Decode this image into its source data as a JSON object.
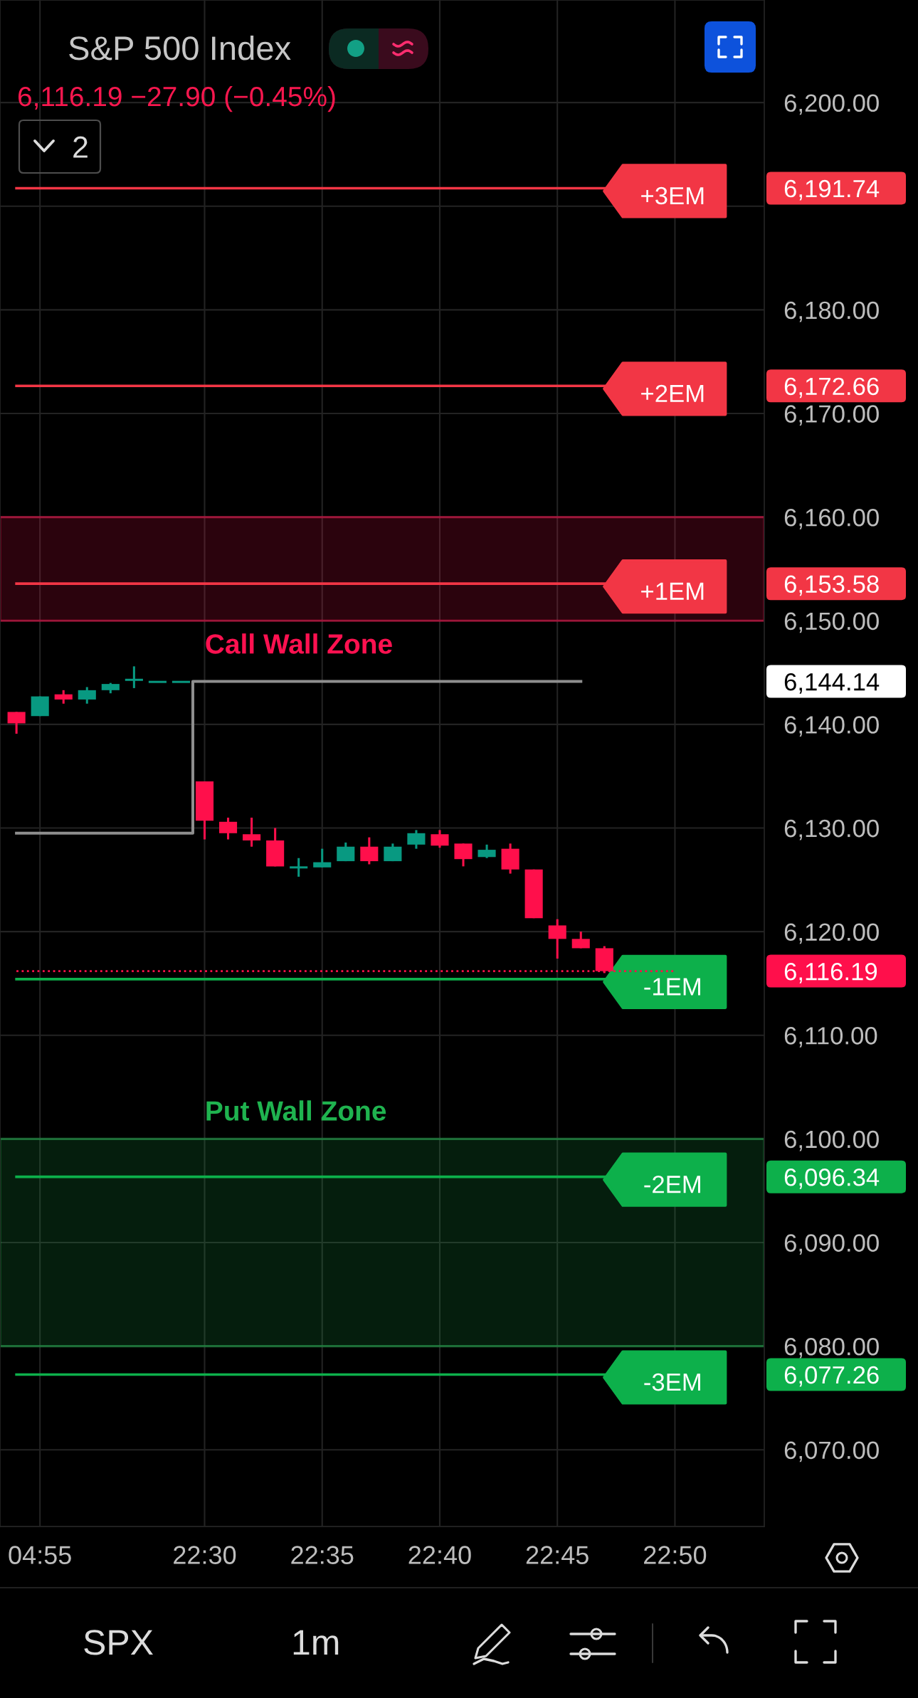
{
  "chart_data": {
    "type": "candlestick",
    "title": "S&P 500 Index",
    "subtitle": "6,116.19 −27.90 (−0.45%)",
    "categories": [
      null,
      "04:55",
      null,
      null,
      null,
      null,
      null,
      null,
      "22:30",
      null,
      null,
      null,
      null,
      "22:35",
      null,
      null,
      null,
      null,
      "22:40",
      null,
      null,
      null,
      null,
      "22:45",
      null,
      null,
      null,
      null,
      "22:50"
    ],
    "ohlc": [
      [
        6141.2,
        6141.2,
        6139.1,
        6140.1
      ],
      [
        6140.8,
        6142.7,
        6140.8,
        6142.7
      ],
      [
        6142.9,
        6143.3,
        6142.0,
        6142.4
      ],
      [
        6142.4,
        6143.6,
        6142.0,
        6143.3
      ],
      [
        6143.3,
        6144.0,
        6143.0,
        6143.9
      ],
      [
        6144.3,
        6145.6,
        6143.5,
        6144.3
      ],
      [
        6144.1,
        6144.1,
        6144.1,
        6144.1
      ],
      [
        6144.1,
        6144.1,
        6144.1,
        6144.1
      ],
      [
        6134.5,
        6134.5,
        6128.9,
        6130.7
      ],
      [
        6130.6,
        6131.0,
        6128.9,
        6129.5
      ],
      [
        6129.4,
        6131.0,
        6128.2,
        6128.8
      ],
      [
        6128.8,
        6130.0,
        6126.3,
        6126.3
      ],
      [
        6126.2,
        6127.1,
        6125.3,
        6126.2
      ],
      [
        6126.2,
        6128.0,
        6126.2,
        6126.7
      ],
      [
        6126.8,
        6128.6,
        6126.8,
        6128.2
      ],
      [
        6128.2,
        6129.1,
        6126.5,
        6126.8
      ],
      [
        6126.8,
        6128.5,
        6126.8,
        6128.2
      ],
      [
        6128.4,
        6129.8,
        6128.0,
        6129.5
      ],
      [
        6129.4,
        6129.8,
        6128.1,
        6128.3
      ],
      [
        6128.5,
        6128.5,
        6126.3,
        6127.0
      ],
      [
        6127.2,
        6128.4,
        6127.1,
        6127.9
      ],
      [
        6128.0,
        6128.5,
        6125.6,
        6126.0
      ],
      [
        6126.0,
        6126.0,
        6121.3,
        6121.3
      ],
      [
        6120.6,
        6121.2,
        6117.4,
        6119.3
      ],
      [
        6119.3,
        6120.0,
        6118.4,
        6118.4
      ],
      [
        6118.4,
        6118.6,
        6116.0,
        6116.19
      ],
      null,
      null,
      null
    ],
    "colors": [
      "#ff0f4b",
      "#089981",
      "#ff0f4b",
      "#089981",
      "#089981",
      "#089981",
      "#089981",
      "#089981",
      "#ff0f4b",
      "#ff0f4b",
      "#ff0f4b",
      "#ff0f4b",
      "#089981",
      "#089981",
      "#089981",
      "#ff0f4b",
      "#089981",
      "#089981",
      "#ff0f4b",
      "#ff0f4b",
      "#089981",
      "#ff0f4b",
      "#ff0f4b",
      "#ff0f4b",
      "#ff0f4b",
      "#ff0f4b",
      null,
      null,
      null
    ],
    "series": [
      {
        "type": "step",
        "color": "#8e8e8e",
        "values": [
          6129.5,
          6129.5,
          6129.5,
          6129.5,
          6129.5,
          6129.5,
          6129.5,
          6129.5,
          6144.14,
          6144.14,
          6144.14,
          6144.14,
          6144.14,
          6144.14,
          6144.14,
          6144.14,
          6144.14,
          6144.14,
          6144.14,
          6144.14,
          6144.14,
          6144.14,
          6144.14,
          6144.14,
          6144.14,
          null,
          null,
          null,
          null
        ]
      },
      {
        "type": "line",
        "name": "+3EM",
        "color": "#f23645",
        "values": [
          6191.74,
          6191.74,
          6191.74,
          6191.74,
          6191.74,
          6191.74,
          6191.74,
          6191.74,
          6191.74,
          6191.74,
          6191.74,
          6191.74,
          6191.74,
          6191.74,
          6191.74,
          6191.74,
          6191.74,
          6191.74,
          6191.74,
          6191.74,
          6191.74,
          6191.74,
          6191.74,
          6191.74,
          6191.74,
          6191.74,
          null,
          null,
          null
        ]
      },
      {
        "type": "line",
        "name": "+2EM",
        "color": "#f23645",
        "values": [
          6172.66,
          6172.66,
          6172.66,
          6172.66,
          6172.66,
          6172.66,
          6172.66,
          6172.66,
          6172.66,
          6172.66,
          6172.66,
          6172.66,
          6172.66,
          6172.66,
          6172.66,
          6172.66,
          6172.66,
          6172.66,
          6172.66,
          6172.66,
          6172.66,
          6172.66,
          6172.66,
          6172.66,
          6172.66,
          6172.66,
          null,
          null,
          null
        ]
      },
      {
        "type": "line",
        "name": "+1EM",
        "color": "#f23645",
        "values": [
          6153.58,
          6153.58,
          6153.58,
          6153.58,
          6153.58,
          6153.58,
          6153.58,
          6153.58,
          6153.58,
          6153.58,
          6153.58,
          6153.58,
          6153.58,
          6153.58,
          6153.58,
          6153.58,
          6153.58,
          6153.58,
          6153.58,
          6153.58,
          6153.58,
          6153.58,
          6153.58,
          6153.58,
          6153.58,
          6153.58,
          null,
          null,
          null
        ]
      },
      {
        "type": "line",
        "line_style": "dotted",
        "color": "#ff0f4b",
        "values": [
          6116.19,
          6116.19,
          6116.19,
          6116.19,
          6116.19,
          6116.19,
          6116.19,
          6116.19,
          6116.19,
          6116.19,
          6116.19,
          6116.19,
          6116.19,
          6116.19,
          6116.19,
          6116.19,
          6116.19,
          6116.19,
          6116.19,
          6116.19,
          6116.19,
          6116.19,
          6116.19,
          6116.19,
          6116.19,
          6116.19,
          6116.19,
          6116.19,
          6116.19
        ]
      },
      {
        "type": "line",
        "name": "-1EM",
        "color": "#0db04b",
        "values": [
          6115.42,
          6115.42,
          6115.42,
          6115.42,
          6115.42,
          6115.42,
          6115.42,
          6115.42,
          6115.42,
          6115.42,
          6115.42,
          6115.42,
          6115.42,
          6115.42,
          6115.42,
          6115.42,
          6115.42,
          6115.42,
          6115.42,
          6115.42,
          6115.42,
          6115.42,
          6115.42,
          6115.42,
          6115.42,
          6115.42,
          null,
          null,
          null
        ]
      },
      {
        "type": "line",
        "name": "-2EM",
        "color": "#0db04b",
        "values": [
          6096.34,
          6096.34,
          6096.34,
          6096.34,
          6096.34,
          6096.34,
          6096.34,
          6096.34,
          6096.34,
          6096.34,
          6096.34,
          6096.34,
          6096.34,
          6096.34,
          6096.34,
          6096.34,
          6096.34,
          6096.34,
          6096.34,
          6096.34,
          6096.34,
          6096.34,
          6096.34,
          6096.34,
          6096.34,
          6096.34,
          null,
          null,
          null
        ]
      },
      {
        "type": "line",
        "name": "-3EM",
        "color": "#0db04b",
        "values": [
          6077.26,
          6077.26,
          6077.26,
          6077.26,
          6077.26,
          6077.26,
          6077.26,
          6077.26,
          6077.26,
          6077.26,
          6077.26,
          6077.26,
          6077.26,
          6077.26,
          6077.26,
          6077.26,
          6077.26,
          6077.26,
          6077.26,
          6077.26,
          6077.26,
          6077.26,
          6077.26,
          6077.26,
          6077.26,
          6077.26,
          null,
          null,
          null
        ]
      }
    ],
    "ylim": [
      6062.6,
      6209.9
    ],
    "yticks": [
      {
        "value": 6070,
        "label": "6,070.00"
      },
      {
        "value": 6080,
        "label": "6,080.00"
      },
      {
        "value": 6090,
        "label": "6,090.00"
      },
      {
        "value": 6100,
        "label": "6,100.00"
      },
      {
        "value": 6110,
        "label": "6,110.00"
      },
      {
        "value": 6120,
        "label": "6,120.00"
      },
      {
        "value": 6130,
        "label": "6,130.00"
      },
      {
        "value": 6140,
        "label": "6,140.00"
      },
      {
        "value": 6150,
        "label": "6,150.00"
      },
      {
        "value": 6160,
        "label": "6,160.00"
      },
      {
        "value": 6170,
        "label": "6,170.00"
      },
      {
        "value": 6180,
        "label": "6,180.00"
      },
      {
        "value": 6190,
        "label": null
      },
      {
        "value": 6200,
        "label": "6,200.00"
      }
    ],
    "y2lim": [
      6062.6,
      6209.9
    ],
    "y2ticks": [
      {
        "value": 6077.26,
        "label": "6,077.26"
      },
      {
        "value": 6096.34,
        "label": "6,096.34"
      },
      {
        "value": 6116.19,
        "label": "6,116.19"
      },
      {
        "value": 6144.14,
        "label": "6,144.14"
      },
      {
        "value": 6153.58,
        "label": "6,153.58"
      },
      {
        "value": 6172.66,
        "label": "6,172.66"
      },
      {
        "value": 6191.74,
        "label": "6,191.74"
      }
    ],
    "grid": true,
    "bands": [
      {
        "axis": "y",
        "from": 6150,
        "to": 6160,
        "label": "Call Wall Zone",
        "color": "#ff1150"
      },
      {
        "axis": "y",
        "from": 6080,
        "to": 6100,
        "label": "Put Wall Zone",
        "color": "#1fb34f"
      }
    ],
    "annotations": [
      "2",
      "SPX",
      "1m"
    ]
  }
}
